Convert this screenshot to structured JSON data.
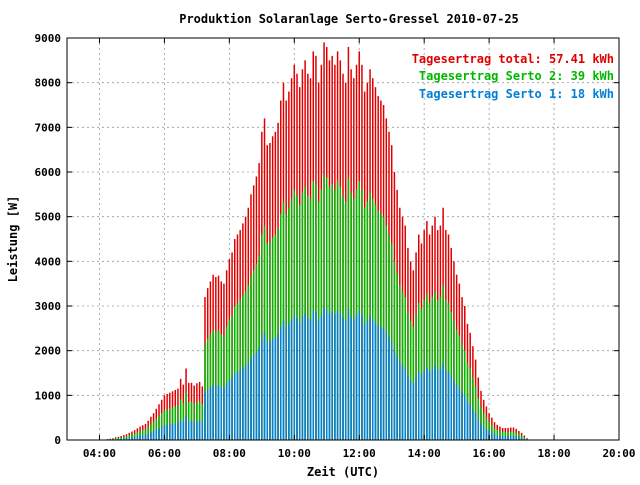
{
  "chart_data": {
    "type": "bar",
    "title": "Produktion Solaranlage Serto-Gressel 2010-07-25",
    "xlabel": "Zeit (UTC)",
    "ylabel": "Leistung [W]",
    "xlim": [
      3.0,
      20.0
    ],
    "ylim": [
      0,
      9000
    ],
    "x_ticks": [
      4,
      6,
      8,
      10,
      12,
      14,
      16,
      18,
      20
    ],
    "x_tick_labels": [
      "04:00",
      "06:00",
      "08:00",
      "10:00",
      "12:00",
      "14:00",
      "16:00",
      "18:00",
      "20:00"
    ],
    "y_ticks": [
      0,
      1000,
      2000,
      3000,
      4000,
      5000,
      6000,
      7000,
      8000,
      9000
    ],
    "y_tick_labels": [
      "0",
      "1000",
      "2000",
      "3000",
      "4000",
      "5000",
      "6000",
      "7000",
      "8000",
      "9000"
    ],
    "grid": true,
    "legend_position": "top-right",
    "interval_minutes": 5,
    "start_time": 4.25,
    "series": [
      {
        "name": "total",
        "color": "#e00000",
        "values": [
          20,
          30,
          40,
          60,
          70,
          90,
          110,
          130,
          160,
          190,
          220,
          260,
          300,
          330,
          360,
          430,
          520,
          600,
          700,
          800,
          900,
          1000,
          1030,
          1060,
          1090,
          1120,
          1150,
          1370,
          1240,
          1600,
          1280,
          1280,
          1220,
          1270,
          1300,
          1200,
          3200,
          3400,
          3550,
          3700,
          3650,
          3680,
          3550,
          3500,
          3800,
          4050,
          4200,
          4500,
          4600,
          4700,
          4850,
          5000,
          5200,
          5500,
          5700,
          5900,
          6200,
          6900,
          7200,
          6600,
          6650,
          6800,
          6900,
          7100,
          7600,
          8000,
          7600,
          7800,
          8100,
          8400,
          8200,
          7900,
          8300,
          8500,
          8200,
          8100,
          8700,
          8600,
          8000,
          8400,
          8900,
          8800,
          8500,
          8600,
          8400,
          8700,
          8500,
          8200,
          8000,
          8800,
          8300,
          8100,
          8400,
          8700,
          8400,
          7800,
          8000,
          8300,
          8100,
          7900,
          7700,
          7600,
          7500,
          7200,
          6900,
          6600,
          6000,
          5600,
          5200,
          5000,
          4800,
          4300,
          4000,
          3800,
          4200,
          4600,
          4400,
          4700,
          4900,
          4600,
          4800,
          5000,
          4700,
          4800,
          5200,
          4700,
          4600,
          4300,
          4000,
          3700,
          3500,
          3200,
          3000,
          2600,
          2400,
          2100,
          1800,
          1400,
          1100,
          900,
          750,
          600,
          500,
          400,
          340,
          300,
          270,
          270,
          270,
          280,
          280,
          250,
          200,
          160,
          100,
          40
        ]
      },
      {
        "name": "serto2",
        "color": "#00b800",
        "values": [
          13,
          20,
          27,
          40,
          47,
          60,
          73,
          87,
          107,
          127,
          147,
          173,
          200,
          220,
          240,
          287,
          347,
          400,
          467,
          533,
          600,
          667,
          687,
          707,
          727,
          747,
          767,
          913,
          827,
          1067,
          853,
          853,
          813,
          847,
          867,
          800,
          2133,
          2267,
          2367,
          2467,
          2433,
          2453,
          2367,
          2333,
          2533,
          2700,
          2800,
          3000,
          3067,
          3133,
          3233,
          3333,
          3467,
          3667,
          3800,
          3933,
          4133,
          4600,
          4800,
          4400,
          4433,
          4533,
          4600,
          4733,
          5067,
          5333,
          5067,
          5200,
          5400,
          5600,
          5467,
          5267,
          5533,
          5667,
          5467,
          5400,
          5800,
          5733,
          5333,
          5600,
          5933,
          5867,
          5667,
          5733,
          5600,
          5800,
          5667,
          5467,
          5333,
          5867,
          5533,
          5400,
          5600,
          5800,
          5600,
          5200,
          5333,
          5533,
          5400,
          5267,
          5133,
          5067,
          5000,
          4800,
          4600,
          4400,
          4000,
          3733,
          3467,
          3333,
          3200,
          2867,
          2667,
          2533,
          2800,
          3067,
          2933,
          3133,
          3267,
          3067,
          3200,
          3333,
          3133,
          3200,
          3467,
          3133,
          3067,
          2867,
          2667,
          2467,
          2333,
          2133,
          2000,
          1733,
          1600,
          1400,
          1200,
          933,
          733,
          600,
          500,
          400,
          333,
          267,
          227,
          200,
          180,
          180,
          180,
          187,
          187,
          167,
          133,
          107,
          67,
          27
        ]
      },
      {
        "name": "serto1",
        "color": "#0080d8",
        "values": [
          7,
          10,
          13,
          20,
          23,
          30,
          37,
          43,
          53,
          63,
          73,
          87,
          100,
          110,
          120,
          143,
          173,
          200,
          233,
          267,
          300,
          333,
          343,
          353,
          363,
          373,
          383,
          457,
          413,
          533,
          427,
          427,
          407,
          423,
          433,
          400,
          1067,
          1133,
          1183,
          1233,
          1217,
          1227,
          1183,
          1167,
          1267,
          1350,
          1400,
          1500,
          1533,
          1567,
          1617,
          1667,
          1733,
          1833,
          1900,
          1967,
          2067,
          2300,
          2400,
          2200,
          2217,
          2267,
          2300,
          2367,
          2533,
          2667,
          2533,
          2600,
          2700,
          2800,
          2733,
          2633,
          2767,
          2833,
          2733,
          2700,
          2900,
          2867,
          2667,
          2800,
          2967,
          2933,
          2833,
          2867,
          2800,
          2900,
          2833,
          2733,
          2667,
          2933,
          2767,
          2700,
          2800,
          2900,
          2800,
          2600,
          2667,
          2767,
          2700,
          2633,
          2567,
          2533,
          2500,
          2400,
          2300,
          2200,
          2000,
          1867,
          1733,
          1667,
          1600,
          1433,
          1333,
          1267,
          1400,
          1533,
          1467,
          1567,
          1633,
          1533,
          1600,
          1667,
          1567,
          1600,
          1733,
          1567,
          1533,
          1433,
          1333,
          1233,
          1167,
          1067,
          1000,
          867,
          800,
          700,
          600,
          467,
          367,
          300,
          250,
          200,
          167,
          133,
          113,
          100,
          90,
          90,
          90,
          93,
          93,
          83,
          67,
          53,
          33,
          13
        ]
      }
    ]
  },
  "legend": [
    {
      "label": "Tagesertrag total: 57.41 kWh",
      "color": "#e00000"
    },
    {
      "label": "Tagesertrag Serto 2: 39 kWh",
      "color": "#00b800"
    },
    {
      "label": "Tagesertrag Serto 1: 18 kWh",
      "color": "#0080d8"
    }
  ]
}
